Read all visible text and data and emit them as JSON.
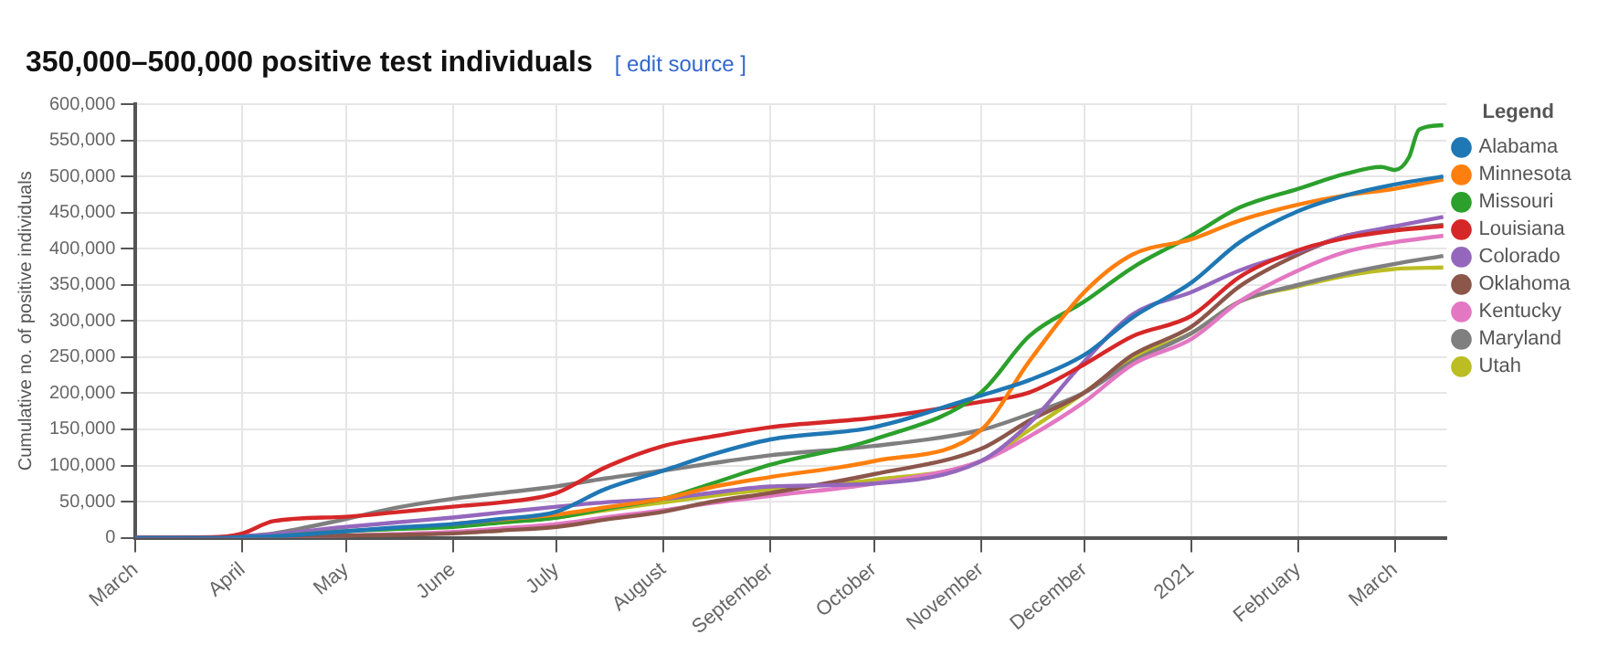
{
  "chart_data": {
    "type": "line",
    "title": "350,000–500,000 positive test individuals",
    "annotations": [
      "[ edit source ]"
    ],
    "ylabel": "Cumulative no. of positive individuals",
    "legend_title": "Legend",
    "legend": "top right",
    "grid": true,
    "marker": "none",
    "line_style": "solid",
    "x": [
      "2020-03-01",
      "2020-03-25",
      "2020-04-01",
      "2020-04-10",
      "2020-05-01",
      "2020-05-15",
      "2020-06-01",
      "2020-06-15",
      "2020-07-01",
      "2020-07-15",
      "2020-08-01",
      "2020-08-15",
      "2020-09-01",
      "2020-10-01",
      "2020-11-01",
      "2020-11-15",
      "2020-12-01",
      "2020-12-15",
      "2021-01-01",
      "2021-01-15",
      "2021-02-01",
      "2021-02-15",
      "2021-03-01",
      "2021-03-15"
    ],
    "xlim": [
      "2020-03-01",
      "2021-03-16"
    ],
    "xticks": [
      {
        "value": "2020-03-01",
        "label": "March"
      },
      {
        "value": "2020-04-01",
        "label": "April"
      },
      {
        "value": "2020-05-01",
        "label": "May"
      },
      {
        "value": "2020-06-01",
        "label": "June"
      },
      {
        "value": "2020-07-01",
        "label": "July"
      },
      {
        "value": "2020-08-01",
        "label": "August"
      },
      {
        "value": "2020-09-01",
        "label": "September"
      },
      {
        "value": "2020-10-01",
        "label": "October"
      },
      {
        "value": "2020-11-01",
        "label": "November"
      },
      {
        "value": "2020-12-01",
        "label": "December"
      },
      {
        "value": "2021-01-01",
        "label": "2021"
      },
      {
        "value": "2021-02-01",
        "label": "February"
      },
      {
        "value": "2021-03-01",
        "label": "March"
      }
    ],
    "ylim": [
      0,
      600000
    ],
    "yticks": [
      {
        "value": 0,
        "label": "0"
      },
      {
        "value": 50000,
        "label": "50,000"
      },
      {
        "value": 100000,
        "label": "100,000"
      },
      {
        "value": 150000,
        "label": "150,000"
      },
      {
        "value": 200000,
        "label": "200,000"
      },
      {
        "value": 250000,
        "label": "250,000"
      },
      {
        "value": 300000,
        "label": "300,000"
      },
      {
        "value": 350000,
        "label": "350,000"
      },
      {
        "value": 400000,
        "label": "400,000"
      },
      {
        "value": 450000,
        "label": "450,000"
      },
      {
        "value": 500000,
        "label": "500,000"
      },
      {
        "value": 550000,
        "label": "550,000"
      },
      {
        "value": 600000,
        "label": "600,000"
      }
    ],
    "series": [
      {
        "name": "Alabama",
        "color": "#1f77b4",
        "values": [
          0,
          0,
          1000,
          2000,
          9000,
          14000,
          19000,
          26000,
          36000,
          67000,
          93000,
          115000,
          136000,
          153000,
          197000,
          218000,
          253000,
          305000,
          353000,
          409000,
          452000,
          474000,
          489000,
          500000
        ]
      },
      {
        "name": "Minnesota",
        "color": "#ff7f0e",
        "values": [
          null,
          null,
          null,
          null,
          null,
          null,
          19000,
          25000,
          32000,
          42000,
          54000,
          70000,
          84000,
          106000,
          149000,
          244000,
          340000,
          392000,
          413000,
          439000,
          461000,
          474000,
          483000,
          496000
        ]
      },
      {
        "name": "Missouri",
        "color": "#2ca02c",
        "x": [
          "2020-04-10",
          "2020-05-01",
          "2020-05-15",
          "2020-06-01",
          "2020-06-15",
          "2020-07-01",
          "2020-07-15",
          "2020-08-01",
          "2020-08-15",
          "2020-09-01",
          "2020-10-01",
          "2020-11-01",
          "2020-11-15",
          "2020-12-01",
          "2020-12-15",
          "2021-01-01",
          "2021-01-15",
          "2021-02-01",
          "2021-02-15",
          "2021-02-25",
          "2021-03-01",
          "2021-03-05",
          "2021-03-08",
          "2021-03-15"
        ],
        "values": [
          2000,
          9000,
          12000,
          15000,
          21000,
          28000,
          40000,
          54000,
          75000,
          101000,
          136000,
          201000,
          279000,
          327000,
          374000,
          418000,
          457000,
          483000,
          504000,
          513000,
          509000,
          526000,
          565000,
          571000
        ]
      },
      {
        "name": "Louisiana",
        "color": "#d62728",
        "values": [
          0,
          1000,
          6000,
          23000,
          29000,
          35000,
          43000,
          49000,
          62000,
          97000,
          127000,
          140000,
          153000,
          166000,
          188000,
          201000,
          240000,
          279000,
          307000,
          361000,
          398000,
          415000,
          425000,
          431000
        ]
      },
      {
        "name": "Colorado",
        "color": "#9467bd",
        "values": [
          0,
          0,
          2000,
          5000,
          15000,
          21000,
          28000,
          35000,
          43000,
          49000,
          54000,
          62000,
          71000,
          75000,
          106000,
          158000,
          244000,
          309000,
          340000,
          370000,
          396000,
          418000,
          431000,
          444000
        ]
      },
      {
        "name": "Oklahoma",
        "color": "#8c564b",
        "values": [
          0,
          0,
          0,
          1000,
          3000,
          4000,
          6000,
          10000,
          15000,
          25000,
          36000,
          50000,
          62000,
          88000,
          123000,
          162000,
          201000,
          253000,
          292000,
          348000,
          392000,
          418000,
          426000,
          433000
        ]
      },
      {
        "name": "Kentucky",
        "color": "#e377c2",
        "values": [
          0,
          0,
          0,
          1000,
          3000,
          5000,
          8000,
          13000,
          19000,
          28000,
          38000,
          48000,
          58000,
          75000,
          106000,
          140000,
          188000,
          240000,
          275000,
          327000,
          370000,
          396000,
          409000,
          418000
        ]
      },
      {
        "name": "Maryland",
        "color": "#7f7f7f",
        "values": [
          0,
          0,
          2000,
          6000,
          26000,
          41000,
          54000,
          62000,
          71000,
          82000,
          93000,
          103000,
          114000,
          127000,
          149000,
          171000,
          201000,
          244000,
          283000,
          327000,
          350000,
          366000,
          379000,
          390000
        ]
      },
      {
        "name": "Utah",
        "color": "#bcbd22",
        "values": [
          null,
          null,
          null,
          null,
          null,
          null,
          null,
          21000,
          28000,
          38000,
          49000,
          58000,
          67000,
          80000,
          106000,
          149000,
          201000,
          249000,
          283000,
          327000,
          348000,
          363000,
          372000,
          374000
        ]
      }
    ]
  }
}
